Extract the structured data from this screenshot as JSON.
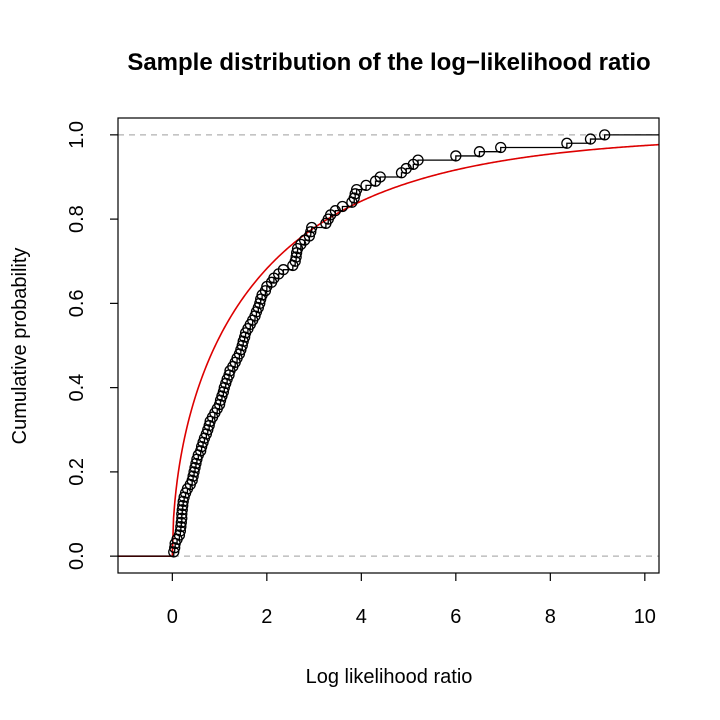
{
  "chart_data": {
    "type": "line",
    "title": "Sample distribution of the log−likelihood ratio",
    "xlabel": "Log likelihood ratio",
    "ylabel": "Cumulative probability",
    "xlim": [
      -1.15,
      10.3
    ],
    "ylim": [
      -0.04,
      1.04
    ],
    "x_ticks": [
      0,
      2,
      4,
      6,
      8,
      10
    ],
    "x_tick_labels": [
      "0",
      "2",
      "4",
      "6",
      "8",
      "10"
    ],
    "y_ticks": [
      0.0,
      0.2,
      0.4,
      0.6,
      0.8,
      1.0
    ],
    "y_tick_labels": [
      "0.0",
      "0.2",
      "0.4",
      "0.6",
      "0.8",
      "1.0"
    ],
    "reference_lines": [
      0,
      1
    ],
    "grid": false,
    "colors": {
      "ecdf": "#000000",
      "theoretical": "#dd0000",
      "reference": "#b0b0b0"
    },
    "series": [
      {
        "kind": "empirical-step",
        "points": [
          [
            0.03,
            0.01
          ],
          [
            0.05,
            0.02
          ],
          [
            0.06,
            0.03
          ],
          [
            0.1,
            0.04
          ],
          [
            0.15,
            0.05
          ],
          [
            0.17,
            0.06
          ],
          [
            0.18,
            0.07
          ],
          [
            0.19,
            0.08
          ],
          [
            0.2,
            0.09
          ],
          [
            0.2,
            0.1
          ],
          [
            0.21,
            0.11
          ],
          [
            0.22,
            0.12
          ],
          [
            0.23,
            0.13
          ],
          [
            0.25,
            0.14
          ],
          [
            0.28,
            0.15
          ],
          [
            0.32,
            0.16
          ],
          [
            0.38,
            0.17
          ],
          [
            0.42,
            0.18
          ],
          [
            0.44,
            0.19
          ],
          [
            0.46,
            0.2
          ],
          [
            0.48,
            0.21
          ],
          [
            0.5,
            0.22
          ],
          [
            0.52,
            0.23
          ],
          [
            0.55,
            0.24
          ],
          [
            0.6,
            0.25
          ],
          [
            0.62,
            0.26
          ],
          [
            0.65,
            0.27
          ],
          [
            0.68,
            0.28
          ],
          [
            0.72,
            0.29
          ],
          [
            0.75,
            0.3
          ],
          [
            0.78,
            0.31
          ],
          [
            0.8,
            0.32
          ],
          [
            0.85,
            0.33
          ],
          [
            0.9,
            0.34
          ],
          [
            0.95,
            0.35
          ],
          [
            1.0,
            0.36
          ],
          [
            1.02,
            0.37
          ],
          [
            1.05,
            0.38
          ],
          [
            1.08,
            0.39
          ],
          [
            1.1,
            0.4
          ],
          [
            1.13,
            0.41
          ],
          [
            1.16,
            0.42
          ],
          [
            1.2,
            0.43
          ],
          [
            1.22,
            0.44
          ],
          [
            1.28,
            0.45
          ],
          [
            1.33,
            0.46
          ],
          [
            1.37,
            0.47
          ],
          [
            1.42,
            0.48
          ],
          [
            1.45,
            0.49
          ],
          [
            1.48,
            0.5
          ],
          [
            1.5,
            0.51
          ],
          [
            1.53,
            0.52
          ],
          [
            1.55,
            0.53
          ],
          [
            1.6,
            0.54
          ],
          [
            1.65,
            0.55
          ],
          [
            1.7,
            0.56
          ],
          [
            1.75,
            0.57
          ],
          [
            1.78,
            0.58
          ],
          [
            1.82,
            0.59
          ],
          [
            1.85,
            0.6
          ],
          [
            1.87,
            0.61
          ],
          [
            1.9,
            0.62
          ],
          [
            1.97,
            0.63
          ],
          [
            2.0,
            0.64
          ],
          [
            2.1,
            0.65
          ],
          [
            2.15,
            0.66
          ],
          [
            2.25,
            0.67
          ],
          [
            2.35,
            0.68
          ],
          [
            2.55,
            0.69
          ],
          [
            2.6,
            0.7
          ],
          [
            2.62,
            0.71
          ],
          [
            2.63,
            0.72
          ],
          [
            2.65,
            0.73
          ],
          [
            2.72,
            0.74
          ],
          [
            2.8,
            0.75
          ],
          [
            2.9,
            0.76
          ],
          [
            2.93,
            0.77
          ],
          [
            2.95,
            0.78
          ],
          [
            3.25,
            0.79
          ],
          [
            3.3,
            0.8
          ],
          [
            3.35,
            0.81
          ],
          [
            3.45,
            0.82
          ],
          [
            3.6,
            0.83
          ],
          [
            3.8,
            0.84
          ],
          [
            3.85,
            0.85
          ],
          [
            3.87,
            0.86
          ],
          [
            3.9,
            0.87
          ],
          [
            4.1,
            0.88
          ],
          [
            4.3,
            0.89
          ],
          [
            4.4,
            0.9
          ],
          [
            4.85,
            0.91
          ],
          [
            4.95,
            0.92
          ],
          [
            5.1,
            0.93
          ],
          [
            5.2,
            0.94
          ],
          [
            6.0,
            0.95
          ],
          [
            6.5,
            0.96
          ],
          [
            6.95,
            0.97
          ],
          [
            8.35,
            0.98
          ],
          [
            8.85,
            0.99
          ],
          [
            9.15,
            1.0
          ]
        ]
      },
      {
        "kind": "theoretical-cdf",
        "note_dist": "scaled-chi2-1df",
        "scale": 2.0
      }
    ]
  }
}
